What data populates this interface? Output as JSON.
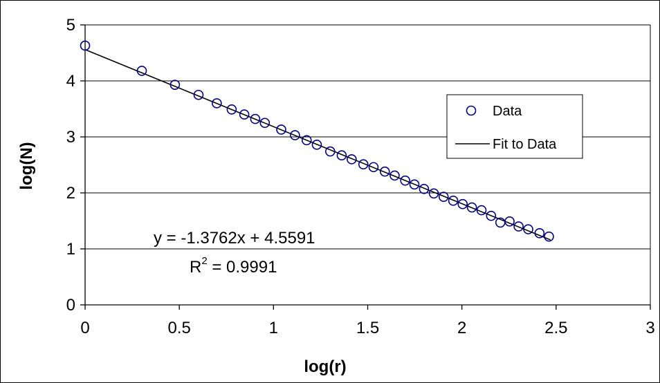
{
  "chart_data": {
    "type": "scatter",
    "xlabel": "log(r)",
    "ylabel": "log(N)",
    "xlim": [
      0,
      3
    ],
    "ylim": [
      0,
      5
    ],
    "xticks": [
      "0",
      "0.5",
      "1",
      "1.5",
      "2",
      "2.5",
      "3"
    ],
    "yticks": [
      "0",
      "1",
      "2",
      "3",
      "4",
      "5"
    ],
    "grid": "horizontal major gridlines",
    "legend_position": "right",
    "colors": {
      "data_marker": "#000080",
      "fit_line": "#000000",
      "grid": "#000000"
    },
    "series": [
      {
        "name": "Data",
        "marker": "open-circle",
        "x": [
          0,
          0.301,
          0.477,
          0.602,
          0.699,
          0.778,
          0.845,
          0.903,
          0.954,
          1.041,
          1.114,
          1.176,
          1.23,
          1.301,
          1.362,
          1.415,
          1.477,
          1.531,
          1.591,
          1.643,
          1.699,
          1.748,
          1.799,
          1.851,
          1.903,
          1.954,
          2.004,
          2.053,
          2.104,
          2.155,
          2.204,
          2.253,
          2.301,
          2.352,
          2.412,
          2.462
        ],
        "y": [
          4.63,
          4.18,
          3.93,
          3.75,
          3.6,
          3.49,
          3.4,
          3.32,
          3.25,
          3.13,
          3.03,
          2.94,
          2.86,
          2.74,
          2.67,
          2.6,
          2.51,
          2.46,
          2.38,
          2.31,
          2.22,
          2.15,
          2.07,
          1.99,
          1.93,
          1.86,
          1.8,
          1.74,
          1.69,
          1.59,
          1.47,
          1.49,
          1.4,
          1.35,
          1.28,
          1.22
        ]
      },
      {
        "name": "Fit to Data",
        "type": "line",
        "slope": -1.3762,
        "intercept": 4.5591,
        "x_range": [
          0,
          2.47
        ]
      }
    ],
    "annotations": {
      "equation": "y = -1.3762x + 4.5591",
      "r2_base": "R",
      "r2_sup": "2",
      "r2_rest": " = 0.9991"
    }
  }
}
